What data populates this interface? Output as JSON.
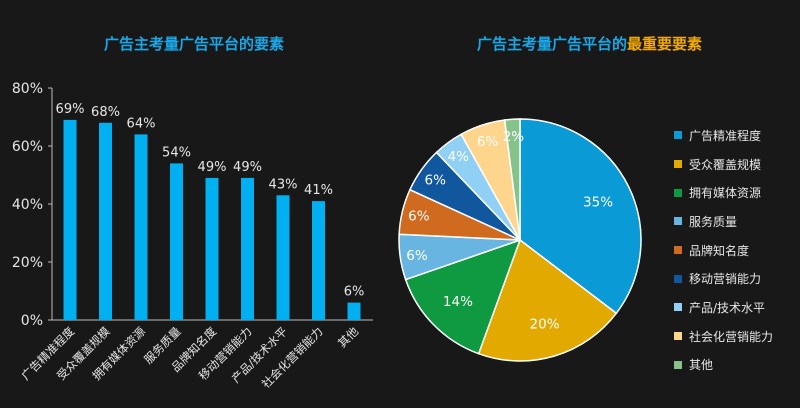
{
  "titles": {
    "bar": "广告主考量广告平台的要素",
    "pie_prefix": "广告主考量广告平台的",
    "pie_highlight": "最重要要素"
  },
  "chart_data": [
    {
      "type": "bar",
      "title": "广告主考量广告平台的要素",
      "categories": [
        "广告精准程度",
        "受众覆盖规模",
        "拥有媒体资源",
        "服务质量",
        "品牌知名度",
        "移动营销能力",
        "产品/技术水平",
        "社会化营销能力",
        "其他"
      ],
      "values": [
        69,
        68,
        64,
        54,
        49,
        49,
        43,
        41,
        6
      ],
      "data_labels": [
        "69%",
        "68%",
        "64%",
        "54%",
        "49%",
        "49%",
        "43%",
        "41%",
        "6%"
      ],
      "yticks": [
        "0%",
        "20%",
        "40%",
        "60%",
        "80%"
      ],
      "ylim": [
        0,
        80
      ],
      "color": "#00b0f0",
      "grid": false
    },
    {
      "type": "pie",
      "title": "广告主考量广告平台的最重要要素",
      "categories": [
        "广告精准程度",
        "受众覆盖规模",
        "拥有媒体资源",
        "服务质量",
        "品牌知名度",
        "移动营销能力",
        "产品/技术水平",
        "社会化营销能力",
        "其他"
      ],
      "values": [
        35,
        20,
        14,
        6,
        6,
        6,
        4,
        6,
        2
      ],
      "data_labels": [
        "35%",
        "20%",
        "14%",
        "6%",
        "6%",
        "6%",
        "4%",
        "6%",
        "2%"
      ],
      "colors": [
        "#0a9bd6",
        "#e2aa00",
        "#0f9a41",
        "#69b5e2",
        "#d06a1e",
        "#10579e",
        "#8fd0f4",
        "#fed58c",
        "#86c38a"
      ],
      "legend_position": "right"
    }
  ]
}
